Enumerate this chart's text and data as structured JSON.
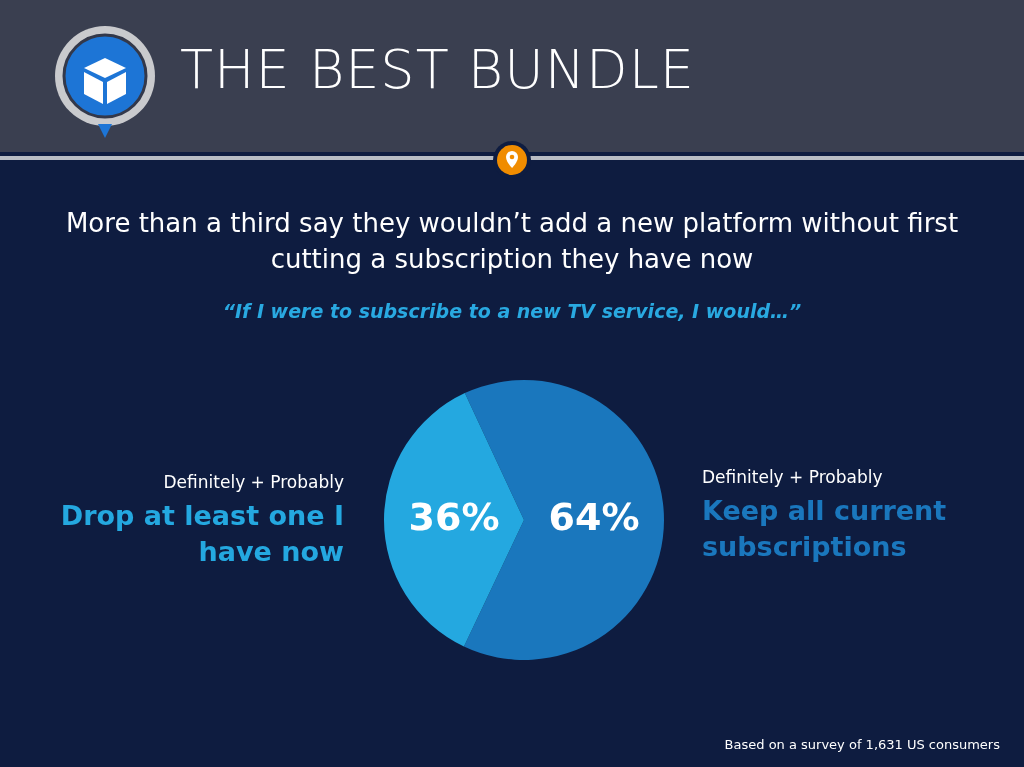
{
  "chart_data": {
    "type": "pie",
    "title": "THE BEST BUNDLE",
    "subtitle": "More than a third say they wouldn’t add a new platform without first cutting a subscription they have now",
    "annotations": [
      "“If I were to subscribe to a new TV service, I would…”",
      "Definitely + Probably",
      "Definitely + Probably",
      "Based on a survey of 1,631 US consumers"
    ],
    "categories": [
      "Keep all current subscriptions",
      "Drop at least one I have now"
    ],
    "values": [
      64,
      36
    ],
    "colors": [
      "#1a77bd",
      "#24a8e0"
    ],
    "value_labels": [
      "64%",
      "36%"
    ],
    "legend": false
  }
}
